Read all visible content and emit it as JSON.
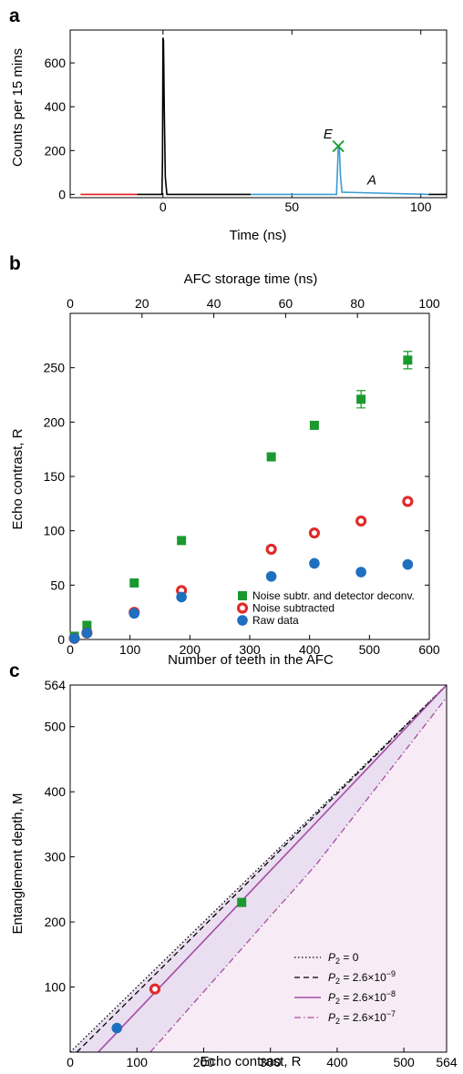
{
  "colors": {
    "red_pre": "#e41a1c",
    "black": "#000000",
    "blue": "#3b9dd0",
    "green": "#139a2a",
    "green_marker": "#1a9a2e",
    "red_marker": "#e02b2b",
    "blue_marker": "#1f6fbf",
    "purple": "#a64ca6",
    "shade_dark": "#e9dff0",
    "shade_light": "#f7ecf5"
  },
  "chart_data": [
    {
      "panel": "a",
      "type": "line",
      "xlabel": "Time (ns)",
      "ylabel": "Counts per 15 mins",
      "xlim": [
        -36,
        110
      ],
      "ylim": [
        -15,
        750
      ],
      "xticks": [
        0,
        50,
        100
      ],
      "yticks": [
        0,
        200,
        400,
        600
      ],
      "annotations": [
        {
          "text": "E",
          "x": 64,
          "y": 255
        },
        {
          "text": "A",
          "x": 81,
          "y": 45
        }
      ],
      "echo_peak_marker": {
        "x": 68,
        "y": 220
      },
      "series": [
        {
          "color_key": "red_pre",
          "x": [
            -32,
            -10
          ],
          "y": [
            0,
            0
          ]
        },
        {
          "color_key": "black",
          "x": [
            -10,
            -0.4,
            -0.2,
            0,
            0.2,
            0.5,
            0.9,
            1.5,
            34
          ],
          "y": [
            0,
            0,
            150,
            715,
            700,
            380,
            80,
            0,
            0
          ]
        },
        {
          "color_key": "blue",
          "x": [
            34,
            67.3,
            67.6,
            68,
            68.4,
            68.8,
            69.4,
            103
          ],
          "y": [
            0,
            0,
            90,
            220,
            215,
            90,
            10,
            0
          ]
        },
        {
          "color_key": "black",
          "x": [
            103,
            110
          ],
          "y": [
            0,
            0
          ]
        }
      ]
    },
    {
      "panel": "b",
      "type": "scatter",
      "xlabel": "Number of teeth in the AFC",
      "x2label": "AFC storage time (ns)",
      "ylabel": "Echo contrast, R",
      "xlim": [
        0,
        600
      ],
      "ylim": [
        0,
        300
      ],
      "x2lim": [
        0,
        100
      ],
      "xticks": [
        0,
        100,
        200,
        300,
        400,
        500,
        600
      ],
      "x2ticks": [
        0,
        20,
        40,
        60,
        80,
        100
      ],
      "yticks": [
        0,
        50,
        100,
        150,
        200,
        250
      ],
      "legend_position": "bottom-right",
      "series": [
        {
          "name": "Noise subtr. and detector deconv.",
          "marker": "square",
          "color_key": "green_marker",
          "x": [
            7,
            28,
            107,
            186,
            336,
            408,
            486,
            564
          ],
          "y": [
            3,
            13,
            52,
            91,
            168,
            197,
            221,
            257
          ],
          "err": [
            0,
            0,
            0,
            0,
            0,
            0,
            8,
            8
          ]
        },
        {
          "name": "Noise subtracted",
          "marker": "ring",
          "color_key": "red_marker",
          "x": [
            7,
            28,
            107,
            186,
            336,
            408,
            486,
            564
          ],
          "y": [
            1,
            6,
            25,
            45,
            83,
            98,
            109,
            127
          ],
          "err": [
            0,
            0,
            0,
            0,
            0,
            0,
            0,
            0
          ]
        },
        {
          "name": "Raw data",
          "marker": "disc",
          "color_key": "blue_marker",
          "x": [
            7,
            28,
            107,
            186,
            336,
            408,
            486,
            564
          ],
          "y": [
            1,
            6,
            24,
            39,
            58,
            70,
            62,
            69
          ],
          "err": [
            0,
            0,
            0,
            0,
            0,
            0,
            0,
            0
          ]
        }
      ]
    },
    {
      "panel": "c",
      "type": "line",
      "xlabel": "Echo contrast, R",
      "ylabel": "Entanglement depth, M",
      "xlim": [
        0,
        564
      ],
      "ylim": [
        0,
        564
      ],
      "xticks": [
        "0",
        "100",
        "200",
        "300",
        "400",
        "500",
        "564"
      ],
      "yticks": [
        "100",
        "200",
        "300",
        "400",
        "500",
        "564"
      ],
      "legend_position": "bottom-right",
      "series": [
        {
          "name": "P2 = 0",
          "style": "dotted",
          "color_key": "black",
          "x": [
            0,
            564
          ],
          "y": [
            0,
            564
          ]
        },
        {
          "name": "P2 = 2.6×10−9",
          "style": "dashed",
          "color_key": "black",
          "x": [
            10,
            564
          ],
          "y": [
            0,
            564
          ]
        },
        {
          "name": "P2 = 2.6×10−8",
          "style": "solid",
          "color_key": "purple",
          "x": [
            42,
            564
          ],
          "y": [
            0,
            564
          ]
        },
        {
          "name": "P2 = 2.6×10−7",
          "style": "dashdot",
          "color_key": "purple",
          "x": [
            120,
            370,
            564
          ],
          "y": [
            0,
            290,
            545
          ]
        }
      ],
      "legend_labels": [
        {
          "sym": "P",
          "sub": "2",
          "val": " = 0"
        },
        {
          "sym": "P",
          "sub": "2",
          "val": " = 2.6×10",
          "exp": "−9"
        },
        {
          "sym": "P",
          "sub": "2",
          "val": " = 2.6×10",
          "exp": "−8"
        },
        {
          "sym": "P",
          "sub": "2",
          "val": " = 2.6×10",
          "exp": "−7"
        }
      ],
      "points": [
        {
          "marker": "square",
          "color_key": "green_marker",
          "x": 257,
          "y": 230
        },
        {
          "marker": "ring",
          "color_key": "red_marker",
          "x": 127,
          "y": 97
        },
        {
          "marker": "disc",
          "color_key": "blue_marker",
          "x": 70,
          "y": 37
        }
      ]
    }
  ],
  "panel_letters": [
    "a",
    "b",
    "c"
  ]
}
